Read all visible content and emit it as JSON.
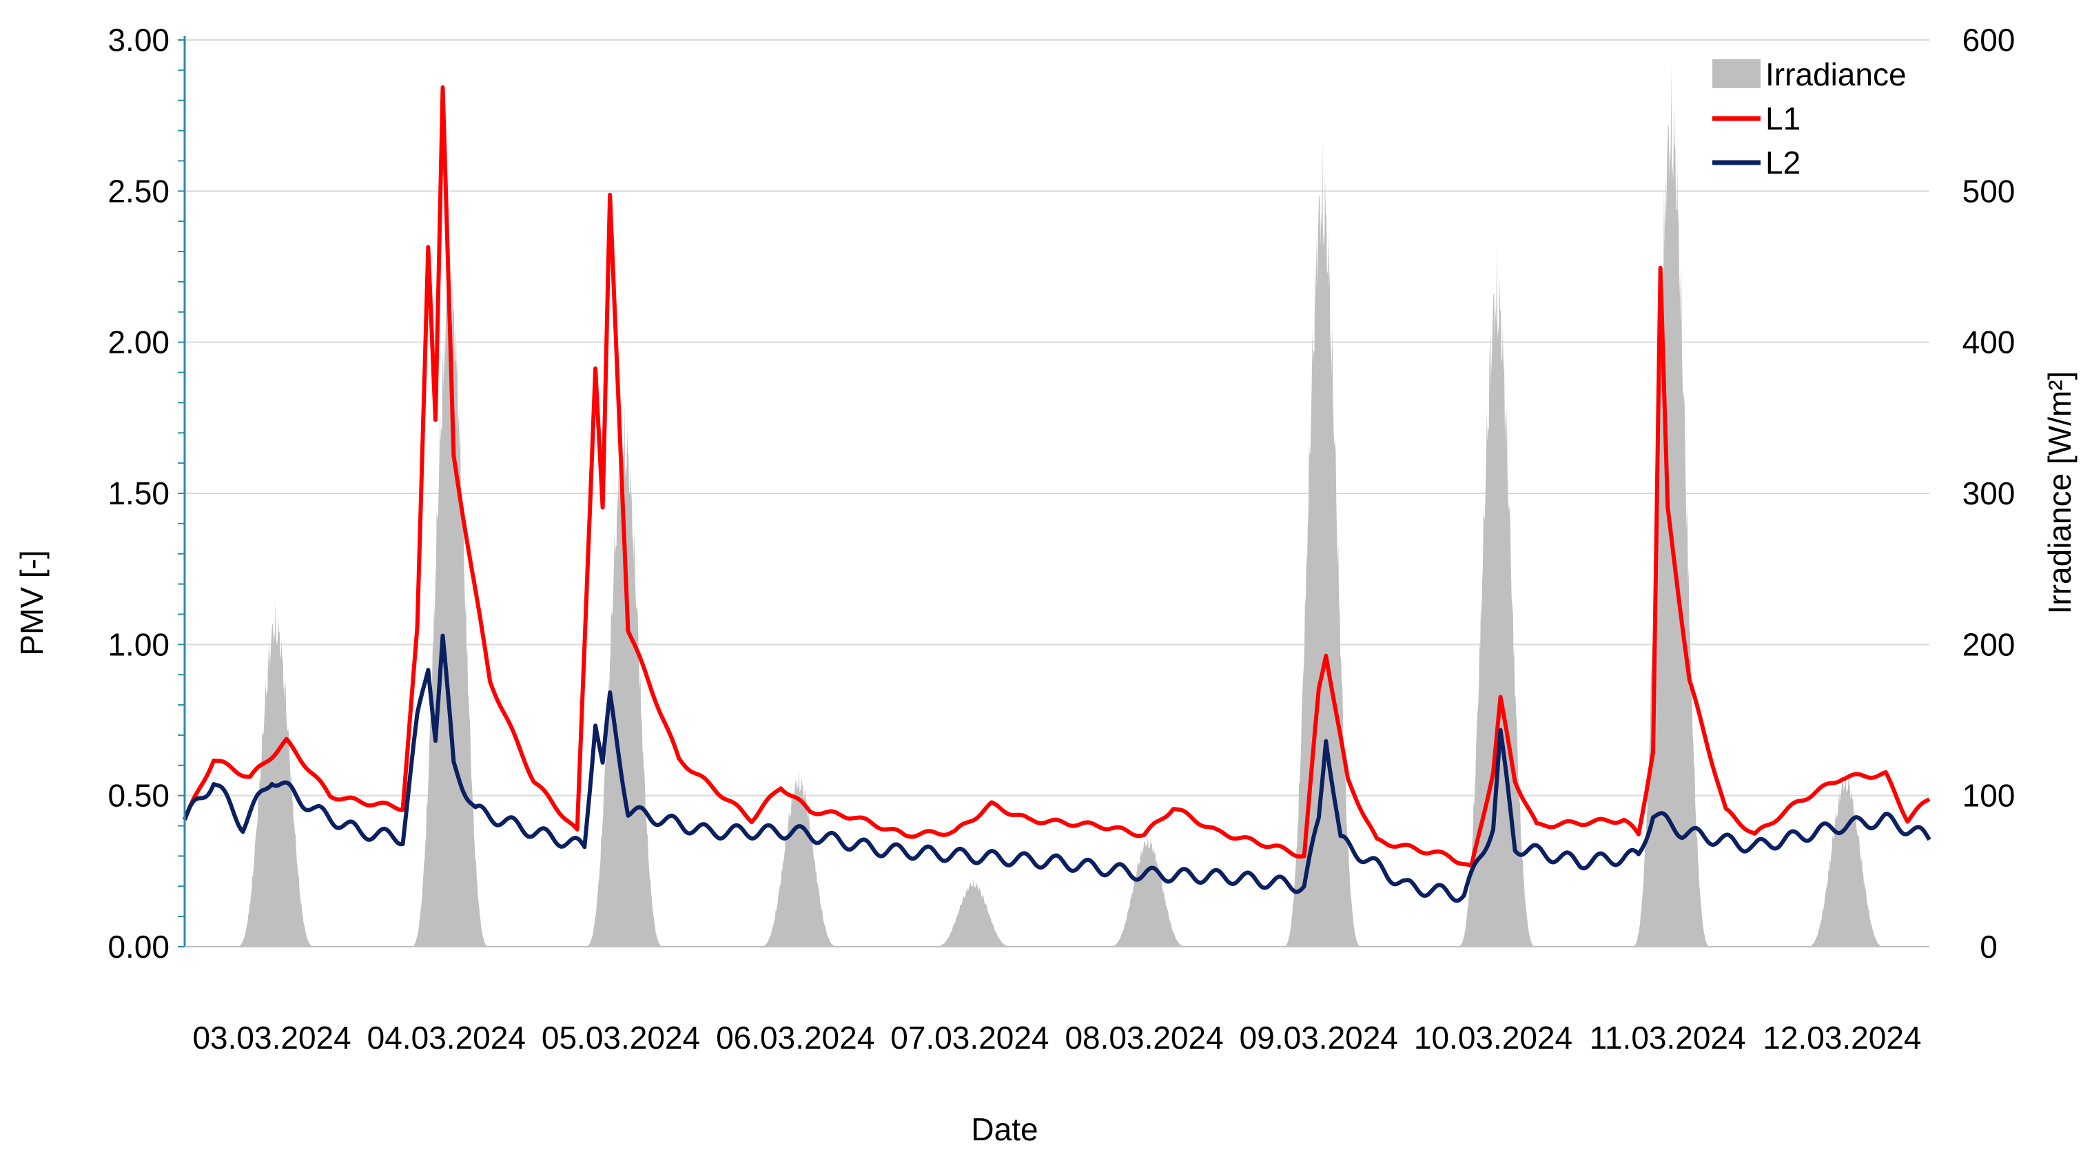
{
  "chart_data": {
    "type": "line",
    "xlabel": "Date",
    "ylabel_left": "PMV [-]",
    "ylabel_right": "Irradiance [W/m²]",
    "y_left_range": [
      0,
      3
    ],
    "y_left_ticks": [
      "0.00",
      "0.50",
      "1.00",
      "1.50",
      "2.00",
      "2.50",
      "3.00"
    ],
    "y_right_range": [
      0,
      600
    ],
    "y_right_ticks": [
      "0",
      "100",
      "200",
      "300",
      "400",
      "500",
      "600"
    ],
    "x_range": [
      "2024-03-03 00:00",
      "2024-03-13 00:00"
    ],
    "x_tick_labels": [
      "03.03.2024",
      "04.03.2024",
      "05.03.2024",
      "06.03.2024",
      "07.03.2024",
      "08.03.2024",
      "09.03.2024",
      "10.03.2024",
      "11.03.2024",
      "12.03.2024"
    ],
    "grid": "horizontal",
    "legend_position": "top-right",
    "series": [
      {
        "name": "Irradiance",
        "type": "area",
        "axis": "right",
        "color": "#bfbfbf",
        "peaks": [
          {
            "date": "2024-03-03",
            "peak": 230
          },
          {
            "date": "2024-03-04",
            "peak": 465
          },
          {
            "date": "2024-03-05",
            "peak": 360
          },
          {
            "date": "2024-03-06",
            "peak": 118
          },
          {
            "date": "2024-03-07",
            "peak": 45
          },
          {
            "date": "2024-03-08",
            "peak": 75
          },
          {
            "date": "2024-03-09",
            "peak": 535
          },
          {
            "date": "2024-03-10",
            "peak": 465
          },
          {
            "date": "2024-03-11",
            "peak": 585
          },
          {
            "date": "2024-03-12",
            "peak": 118
          }
        ]
      },
      {
        "name": "L1",
        "type": "line",
        "axis": "left",
        "color": "#ff0000",
        "points": [
          [
            "2024-03-03 00:00",
            0.42
          ],
          [
            "2024-03-03 04:00",
            0.62
          ],
          [
            "2024-03-03 09:00",
            0.56
          ],
          [
            "2024-03-03 14:00",
            0.68
          ],
          [
            "2024-03-03 20:00",
            0.5
          ],
          [
            "2024-03-04 00:00",
            0.48
          ],
          [
            "2024-03-04 06:00",
            0.46
          ],
          [
            "2024-03-04 08:00",
            1.05
          ],
          [
            "2024-03-04 09:30",
            2.32
          ],
          [
            "2024-03-04 10:30",
            1.75
          ],
          [
            "2024-03-04 11:30",
            2.84
          ],
          [
            "2024-03-04 13:00",
            1.62
          ],
          [
            "2024-03-04 18:00",
            0.88
          ],
          [
            "2024-03-05 00:00",
            0.55
          ],
          [
            "2024-03-05 06:00",
            0.38
          ],
          [
            "2024-03-05 08:30",
            1.92
          ],
          [
            "2024-03-05 09:30",
            1.45
          ],
          [
            "2024-03-05 10:30",
            2.48
          ],
          [
            "2024-03-05 13:00",
            1.05
          ],
          [
            "2024-03-05 20:00",
            0.62
          ],
          [
            "2024-03-06 06:00",
            0.42
          ],
          [
            "2024-03-06 10:00",
            0.53
          ],
          [
            "2024-03-06 14:00",
            0.45
          ],
          [
            "2024-03-06 20:00",
            0.43
          ],
          [
            "2024-03-07 03:00",
            0.37
          ],
          [
            "2024-03-07 10:00",
            0.38
          ],
          [
            "2024-03-07 15:00",
            0.47
          ],
          [
            "2024-03-07 20:00",
            0.42
          ],
          [
            "2024-03-08 06:00",
            0.4
          ],
          [
            "2024-03-08 12:00",
            0.37
          ],
          [
            "2024-03-08 16:00",
            0.46
          ],
          [
            "2024-03-08 22:00",
            0.38
          ],
          [
            "2024-03-09 06:00",
            0.33
          ],
          [
            "2024-03-09 10:00",
            0.3
          ],
          [
            "2024-03-09 12:00",
            0.85
          ],
          [
            "2024-03-09 13:00",
            0.97
          ],
          [
            "2024-03-09 16:00",
            0.55
          ],
          [
            "2024-03-09 20:00",
            0.35
          ],
          [
            "2024-03-10 06:00",
            0.3
          ],
          [
            "2024-03-10 09:00",
            0.26
          ],
          [
            "2024-03-10 12:00",
            0.58
          ],
          [
            "2024-03-10 13:00",
            0.82
          ],
          [
            "2024-03-10 15:00",
            0.55
          ],
          [
            "2024-03-10 18:00",
            0.4
          ],
          [
            "2024-03-11 06:00",
            0.42
          ],
          [
            "2024-03-11 08:00",
            0.37
          ],
          [
            "2024-03-11 10:00",
            0.65
          ],
          [
            "2024-03-11 11:00",
            2.24
          ],
          [
            "2024-03-11 12:00",
            1.45
          ],
          [
            "2024-03-11 15:00",
            0.88
          ],
          [
            "2024-03-11 20:00",
            0.45
          ],
          [
            "2024-03-12 00:00",
            0.37
          ],
          [
            "2024-03-12 06:00",
            0.48
          ],
          [
            "2024-03-12 12:00",
            0.56
          ],
          [
            "2024-03-12 18:00",
            0.57
          ],
          [
            "2024-03-12 21:00",
            0.42
          ],
          [
            "2024-03-13 00:00",
            0.49
          ]
        ]
      },
      {
        "name": "L2",
        "type": "line",
        "axis": "left",
        "color": "#0b2060",
        "points": [
          [
            "2024-03-03 00:00",
            0.42
          ],
          [
            "2024-03-03 04:00",
            0.55
          ],
          [
            "2024-03-03 08:00",
            0.4
          ],
          [
            "2024-03-03 12:00",
            0.56
          ],
          [
            "2024-03-03 18:00",
            0.45
          ],
          [
            "2024-03-04 00:00",
            0.38
          ],
          [
            "2024-03-04 06:00",
            0.36
          ],
          [
            "2024-03-04 08:00",
            0.75
          ],
          [
            "2024-03-04 09:30",
            0.93
          ],
          [
            "2024-03-04 10:30",
            0.7
          ],
          [
            "2024-03-04 11:30",
            1.02
          ],
          [
            "2024-03-04 13:00",
            0.6
          ],
          [
            "2024-03-04 16:00",
            0.45
          ],
          [
            "2024-03-05 00:00",
            0.38
          ],
          [
            "2024-03-05 07:00",
            0.33
          ],
          [
            "2024-03-05 08:30",
            0.75
          ],
          [
            "2024-03-05 09:30",
            0.6
          ],
          [
            "2024-03-05 10:30",
            0.82
          ],
          [
            "2024-03-05 13:00",
            0.45
          ],
          [
            "2024-03-06 00:00",
            0.38
          ],
          [
            "2024-03-06 12:00",
            0.38
          ],
          [
            "2024-03-07 00:00",
            0.32
          ],
          [
            "2024-03-07 12:00",
            0.3
          ],
          [
            "2024-03-08 00:00",
            0.28
          ],
          [
            "2024-03-08 12:00",
            0.24
          ],
          [
            "2024-03-09 00:00",
            0.23
          ],
          [
            "2024-03-09 10:00",
            0.2
          ],
          [
            "2024-03-09 12:00",
            0.42
          ],
          [
            "2024-03-09 13:00",
            0.7
          ],
          [
            "2024-03-09 15:00",
            0.35
          ],
          [
            "2024-03-10 00:00",
            0.2
          ],
          [
            "2024-03-10 08:00",
            0.17
          ],
          [
            "2024-03-10 12:00",
            0.4
          ],
          [
            "2024-03-10 13:00",
            0.7
          ],
          [
            "2024-03-10 15:00",
            0.33
          ],
          [
            "2024-03-11 00:00",
            0.28
          ],
          [
            "2024-03-11 08:00",
            0.3
          ],
          [
            "2024-03-11 10:00",
            0.44
          ],
          [
            "2024-03-11 14:00",
            0.38
          ],
          [
            "2024-03-12 00:00",
            0.33
          ],
          [
            "2024-03-12 12:00",
            0.4
          ],
          [
            "2024-03-12 18:00",
            0.42
          ],
          [
            "2024-03-13 00:00",
            0.36
          ]
        ]
      }
    ]
  }
}
